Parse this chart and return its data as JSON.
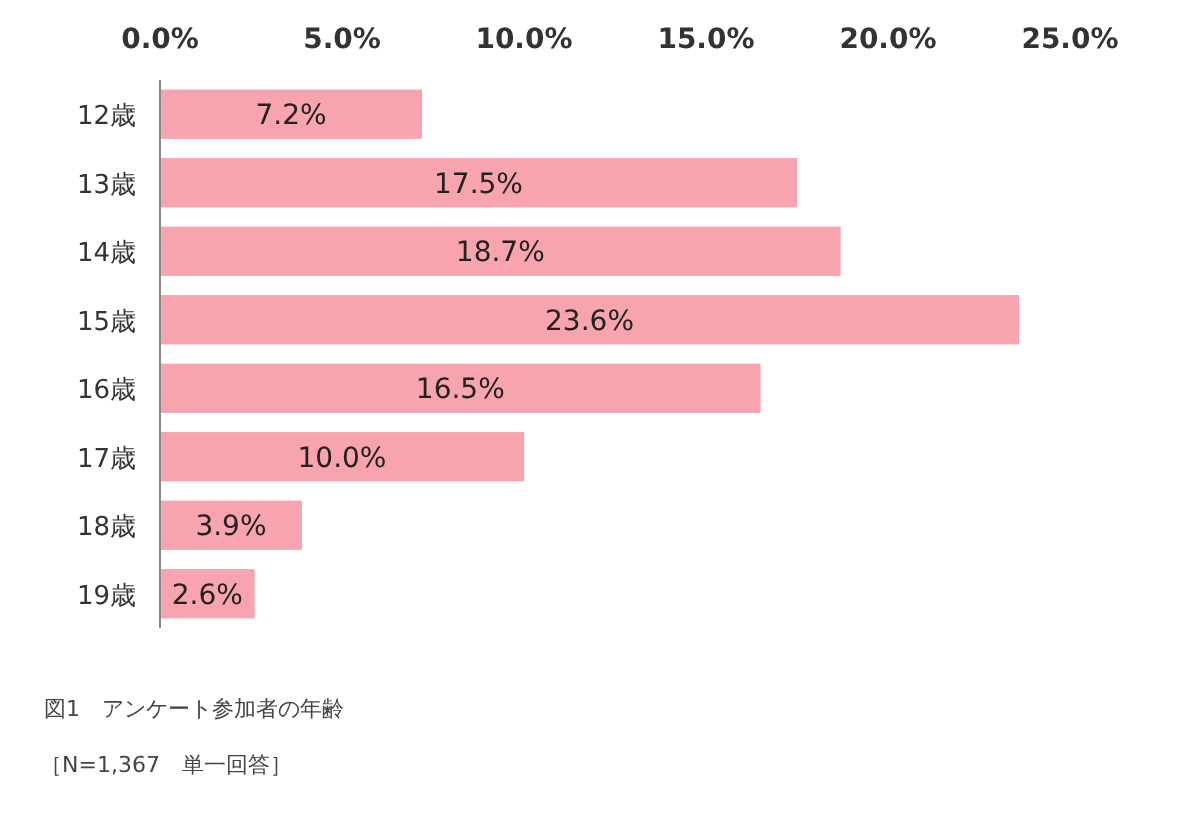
{
  "chart_data": {
    "type": "bar",
    "orientation": "horizontal",
    "categories": [
      "12歳",
      "13歳",
      "14歳",
      "15歳",
      "16歳",
      "17歳",
      "18歳",
      "19歳"
    ],
    "values": [
      7.2,
      17.5,
      18.7,
      23.6,
      16.5,
      10.0,
      3.9,
      2.6
    ],
    "value_labels": [
      "7.2%",
      "17.5%",
      "18.7%",
      "23.6%",
      "16.5%",
      "10.0%",
      "3.9%",
      "2.6%"
    ],
    "color": "#f7a4ae",
    "xlim": [
      0,
      25
    ],
    "xticks": [
      {
        "value": 0,
        "label": "0.0%"
      },
      {
        "value": 5,
        "label": "5.0%"
      },
      {
        "value": 10,
        "label": "10.0%"
      },
      {
        "value": 15,
        "label": "15.0%"
      },
      {
        "value": 20,
        "label": "20.0%"
      },
      {
        "value": 25,
        "label": "25.0%"
      }
    ],
    "annotations": [
      "図1　アンケート参加者の年齢",
      "［N=1,367　単一回答］"
    ]
  }
}
